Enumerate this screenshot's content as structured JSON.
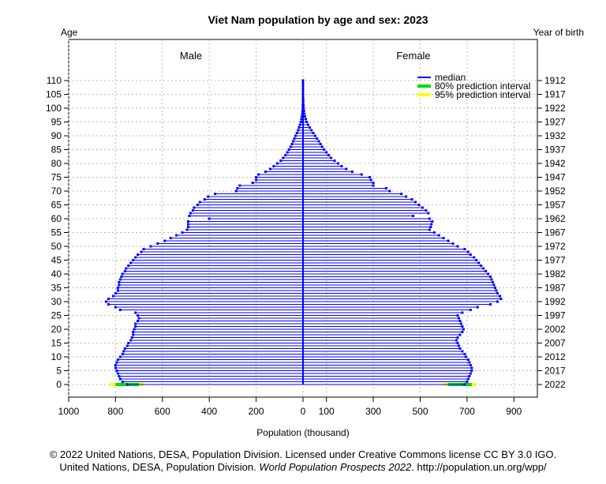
{
  "chart_data": {
    "type": "bar",
    "orientation": "horizontal-pyramid",
    "title": "Viet Nam population by age and sex: 2023",
    "xlabel": "Population (thousand)",
    "ylabel_left": "Age",
    "ylabel_right": "Year of birth",
    "left_group_label": "Male",
    "right_group_label": "Female",
    "x_ticks_left": [
      "1000",
      "800",
      "600",
      "400",
      "200",
      "0"
    ],
    "x_ticks_right": [
      "100",
      "300",
      "500",
      "700",
      "900"
    ],
    "y_ticks_age": [
      "0",
      "5",
      "10",
      "15",
      "20",
      "25",
      "30",
      "35",
      "40",
      "45",
      "50",
      "55",
      "60",
      "65",
      "70",
      "75",
      "80",
      "85",
      "90",
      "95",
      "100",
      "105",
      "110"
    ],
    "y_ticks_birth": [
      "2022",
      "2017",
      "2012",
      "2007",
      "2002",
      "1997",
      "1992",
      "1987",
      "1982",
      "1977",
      "1972",
      "1967",
      "1962",
      "1957",
      "1952",
      "1947",
      "1942",
      "1937",
      "1932",
      "1927",
      "1922",
      "1917",
      "1912"
    ],
    "legend": [
      {
        "label": "median",
        "color": "#0000ff"
      },
      {
        "label": "80% prediction interval",
        "color": "#00dd00"
      },
      {
        "label": "95% prediction interval",
        "color": "#ffff00"
      }
    ],
    "grid": true,
    "xlim_male": [
      0,
      1000
    ],
    "xlim_female": [
      0,
      1000
    ],
    "ylim": [
      0,
      110
    ],
    "ages": [
      0,
      1,
      2,
      3,
      4,
      5,
      6,
      7,
      8,
      9,
      10,
      11,
      12,
      13,
      14,
      15,
      16,
      17,
      18,
      19,
      20,
      21,
      22,
      23,
      24,
      25,
      26,
      27,
      28,
      29,
      30,
      31,
      32,
      33,
      34,
      35,
      36,
      37,
      38,
      39,
      40,
      41,
      42,
      43,
      44,
      45,
      46,
      47,
      48,
      49,
      50,
      51,
      52,
      53,
      54,
      55,
      56,
      57,
      58,
      59,
      60,
      61,
      62,
      63,
      64,
      65,
      66,
      67,
      68,
      69,
      70,
      71,
      72,
      73,
      74,
      75,
      76,
      77,
      78,
      79,
      80,
      81,
      82,
      83,
      84,
      85,
      86,
      87,
      88,
      89,
      90,
      91,
      92,
      93,
      94,
      95,
      96,
      97,
      98,
      99,
      100,
      101,
      102,
      103,
      104,
      105,
      106,
      107,
      108,
      109,
      110
    ],
    "male": [
      750,
      770,
      780,
      785,
      790,
      795,
      800,
      800,
      795,
      790,
      780,
      770,
      765,
      760,
      750,
      745,
      735,
      730,
      725,
      725,
      720,
      715,
      715,
      705,
      700,
      705,
      715,
      780,
      800,
      830,
      840,
      830,
      810,
      800,
      790,
      790,
      785,
      785,
      780,
      775,
      770,
      760,
      755,
      745,
      735,
      725,
      715,
      705,
      690,
      680,
      650,
      620,
      590,
      565,
      540,
      515,
      495,
      490,
      490,
      490,
      400,
      485,
      480,
      470,
      465,
      450,
      440,
      420,
      405,
      375,
      285,
      280,
      270,
      215,
      200,
      200,
      190,
      160,
      140,
      125,
      110,
      95,
      85,
      75,
      67,
      60,
      53,
      47,
      42,
      37,
      32,
      26,
      21,
      17,
      13,
      9,
      7,
      5,
      3,
      2,
      1,
      1,
      0,
      0,
      0,
      0,
      0,
      0,
      0,
      0,
      0
    ],
    "female": [
      690,
      700,
      705,
      710,
      715,
      720,
      720,
      715,
      710,
      705,
      695,
      690,
      680,
      670,
      665,
      660,
      655,
      660,
      670,
      680,
      685,
      680,
      675,
      670,
      665,
      660,
      680,
      715,
      745,
      800,
      830,
      845,
      840,
      830,
      825,
      820,
      815,
      810,
      805,
      800,
      790,
      780,
      770,
      760,
      750,
      740,
      730,
      715,
      705,
      690,
      660,
      640,
      620,
      600,
      580,
      560,
      540,
      545,
      548,
      552,
      540,
      470,
      535,
      525,
      510,
      495,
      480,
      465,
      440,
      420,
      370,
      355,
      300,
      300,
      290,
      285,
      250,
      210,
      185,
      165,
      150,
      135,
      120,
      110,
      100,
      90,
      82,
      75,
      68,
      60,
      52,
      44,
      36,
      29,
      22,
      16,
      12,
      8,
      6,
      4,
      3,
      2,
      1,
      1,
      0,
      0,
      0,
      0,
      0,
      0,
      0
    ],
    "interval_age0": {
      "male_80": [
        700,
        800
      ],
      "male_95": [
        680,
        825
      ],
      "female_80": [
        620,
        720
      ],
      "female_95": [
        600,
        740
      ]
    }
  },
  "credits": {
    "line1": "© 2022 United Nations, DESA, Population Division. Licensed under Creative Commons license CC BY 3.0 IGO.",
    "line2_pre": "United Nations, DESA, Population Division. ",
    "line2_em": "World Population Prospects 2022",
    "line2_post": ". http://population.un.org/wpp/"
  }
}
